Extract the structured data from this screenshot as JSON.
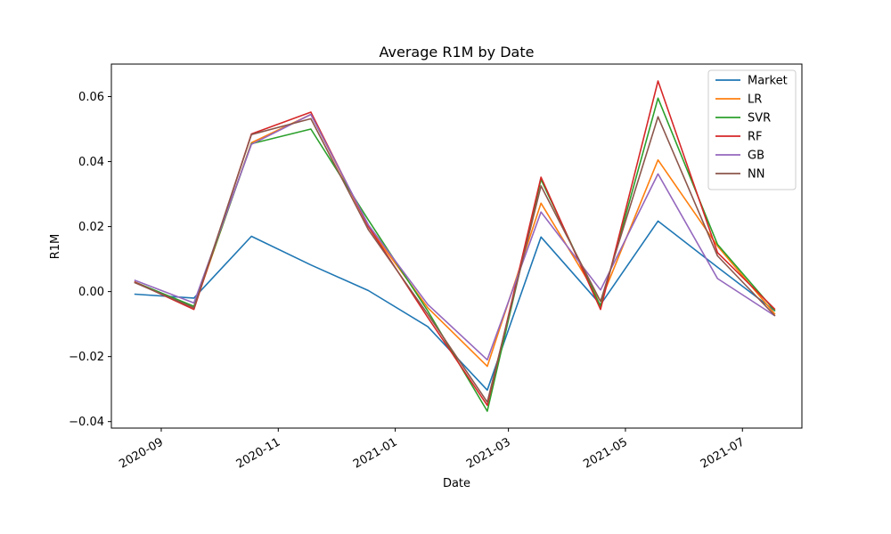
{
  "chart_data": {
    "type": "line",
    "title": "Average R1M by Date",
    "xlabel": "Date",
    "ylabel": "R1M",
    "x": [
      "2020-08-18",
      "2020-09-18",
      "2020-10-18",
      "2020-11-18",
      "2020-12-18",
      "2021-01-18",
      "2021-02-18",
      "2021-03-18",
      "2021-04-18",
      "2021-05-18",
      "2021-06-18",
      "2021-07-18"
    ],
    "xticks": [
      "2020-09",
      "2020-11",
      "2021-01",
      "2021-03",
      "2021-05",
      "2021-07"
    ],
    "ylim": [
      -0.042,
      0.07
    ],
    "yticks": [
      "−0.04",
      "−0.02",
      "0.00",
      "0.02",
      "0.04",
      "0.06"
    ],
    "grid": false,
    "legend_position": "top-right",
    "series": [
      {
        "name": "Market",
        "color": "#1f77b4",
        "values": [
          -0.0008,
          -0.002,
          0.017,
          0.0082,
          0.0003,
          -0.0108,
          -0.0303,
          0.0168,
          -0.004,
          0.0217,
          0.0075,
          -0.006
        ]
      },
      {
        "name": "LR",
        "color": "#ff7f0e",
        "values": [
          0.003,
          -0.005,
          0.0458,
          0.0545,
          0.02,
          -0.005,
          -0.023,
          0.0272,
          -0.003,
          0.0405,
          0.014,
          -0.007
        ]
      },
      {
        "name": "SVR",
        "color": "#2ca02c",
        "values": [
          0.003,
          -0.0045,
          0.0455,
          0.05,
          0.022,
          -0.006,
          -0.0368,
          0.0345,
          -0.0045,
          0.0595,
          0.0145,
          -0.006
        ]
      },
      {
        "name": "RF",
        "color": "#d62728",
        "values": [
          0.003,
          -0.0055,
          0.0485,
          0.0552,
          0.02,
          -0.008,
          -0.035,
          0.0352,
          -0.0055,
          0.0648,
          0.012,
          -0.0055
        ]
      },
      {
        "name": "GB",
        "color": "#9467bd",
        "values": [
          0.0035,
          -0.0035,
          0.0453,
          0.0545,
          0.0205,
          -0.004,
          -0.021,
          0.0245,
          0.0005,
          0.0362,
          0.004,
          -0.0075
        ]
      },
      {
        "name": "NN",
        "color": "#8c564b",
        "values": [
          0.0028,
          -0.005,
          0.0483,
          0.0532,
          0.019,
          -0.007,
          -0.034,
          0.0325,
          -0.003,
          0.0538,
          0.011,
          -0.0075
        ]
      }
    ]
  }
}
